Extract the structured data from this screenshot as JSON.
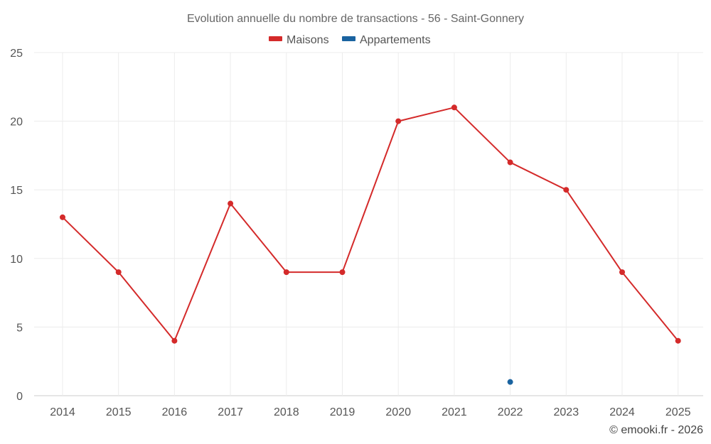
{
  "chart_data": {
    "type": "line",
    "title": "Evolution annuelle du nombre de transactions - 56 - Saint-Gonnery",
    "categories": [
      "2014",
      "2015",
      "2016",
      "2017",
      "2018",
      "2019",
      "2020",
      "2021",
      "2022",
      "2023",
      "2024",
      "2025"
    ],
    "ylim": [
      0,
      25
    ],
    "yticks": [
      0,
      5,
      10,
      15,
      20,
      25
    ],
    "grid": true,
    "legend_position": "top-center",
    "series": [
      {
        "name": "Maisons",
        "color": "#d42a2a",
        "values": [
          13,
          9,
          4,
          14,
          9,
          9,
          20,
          21,
          17,
          15,
          9,
          4
        ]
      },
      {
        "name": "Appartements",
        "color": "#1a63a0",
        "values": [
          null,
          null,
          null,
          null,
          null,
          null,
          null,
          null,
          1,
          null,
          null,
          null
        ]
      }
    ],
    "credit": "© emooki.fr - 2026"
  }
}
